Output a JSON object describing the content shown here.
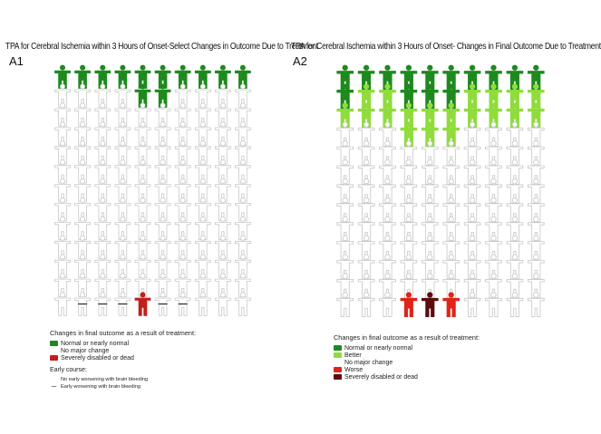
{
  "panels": [
    {
      "id": "a1",
      "title": "TPA for Cerebral Ischemia within 3 Hours of Onset-Select Changes in Outcome Due to Treatment",
      "label": "A1",
      "rows": 13,
      "cols": 10,
      "colors": {
        "outline": "#c8c8c8",
        "green": "#1e8a1e",
        "red": "#c0201a"
      },
      "highlighted": [
        {
          "row": 0,
          "cols": [
            0,
            1,
            2,
            3,
            4,
            5,
            6,
            7,
            8,
            9
          ],
          "color": "green"
        },
        {
          "row": 1,
          "cols": [
            4,
            5
          ],
          "color": "green"
        },
        {
          "row": 12,
          "cols": [
            4
          ],
          "color": "red"
        }
      ],
      "bleeding_marks": {
        "row": 12,
        "cols": [
          1,
          2,
          3,
          5,
          6
        ],
        "symbol": "—"
      },
      "legend": {
        "heading": "Changes in final outcome as a result of treatment:",
        "items": [
          {
            "color": "#1e8a1e",
            "label": "Normal or nearly normal"
          },
          {
            "color": "",
            "label": "No major change"
          },
          {
            "color": "#c0201a",
            "label": "Severely disabled or dead"
          }
        ],
        "course_heading": "Early course:",
        "course_items": [
          {
            "mark": "",
            "label": "No early worsening with brain bleeding"
          },
          {
            "mark": "—",
            "label": "Early worsening with brain bleeding"
          }
        ]
      }
    },
    {
      "id": "a2",
      "title": "TPA for Cerebral Ischemia within 3 Hours of Onset- Changes in Final Outcome Due to Treatment",
      "label": "A2",
      "rows": 13,
      "cols": 10,
      "colors": {
        "outline": "#c8c8c8",
        "green": "#1e8a1e",
        "lightgreen": "#8fdc3c",
        "red": "#e02418",
        "darkred": "#5a0d0d"
      },
      "highlighted": [
        {
          "row": 0,
          "cols": [
            0,
            1,
            2,
            3,
            4,
            5,
            6,
            7,
            8,
            9
          ],
          "color": "green"
        },
        {
          "row": 1,
          "cols": [
            0
          ],
          "color": "green"
        },
        {
          "row": 1,
          "cols": [
            1,
            2
          ],
          "color": "lightgreen"
        },
        {
          "row": 1,
          "cols": [
            3,
            4,
            5
          ],
          "color": "green"
        },
        {
          "row": 1,
          "cols": [
            6,
            7,
            8,
            9
          ],
          "color": "lightgreen"
        },
        {
          "row": 2,
          "cols": [
            0,
            1,
            2,
            3,
            4,
            5,
            6,
            7,
            8,
            9
          ],
          "color": "lightgreen"
        },
        {
          "row": 3,
          "cols": [
            3,
            4,
            5
          ],
          "color": "lightgreen"
        },
        {
          "row": 12,
          "cols": [
            3,
            5
          ],
          "color": "red"
        },
        {
          "row": 12,
          "cols": [
            4
          ],
          "color": "darkred"
        }
      ],
      "legend": {
        "heading": "Changes in final outcome as a result of treatment:",
        "items": [
          {
            "color": "#1e8a1e",
            "label": "Normal or nearly normal"
          },
          {
            "color": "#8fdc3c",
            "label": "Better"
          },
          {
            "color": "",
            "label": "No major change"
          },
          {
            "color": "#e02418",
            "label": "Worse"
          },
          {
            "color": "#5a0d0d",
            "label": "Severely disabled or dead"
          }
        ]
      }
    }
  ]
}
